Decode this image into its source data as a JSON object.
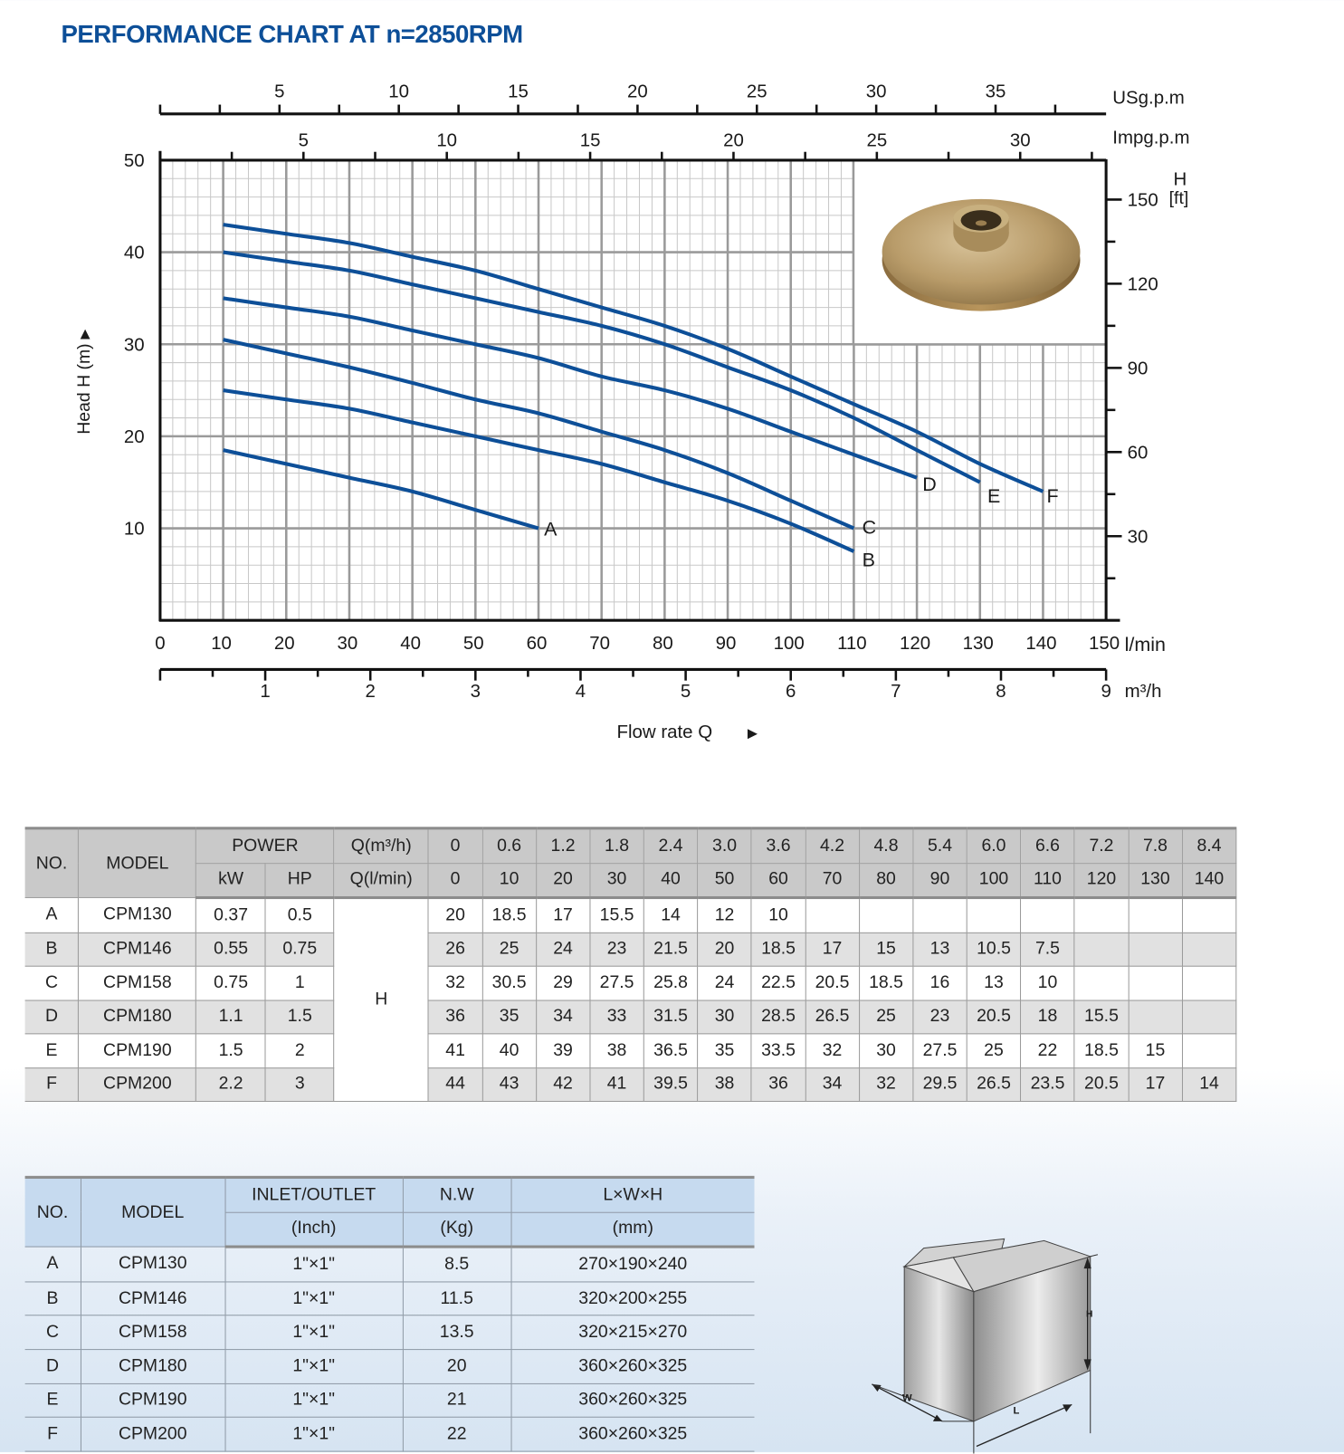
{
  "chart_data": {
    "type": "line",
    "title": "PERFORMANCE CHART AT n=2850RPM",
    "xlabel": "Flow rate Q",
    "ylabel": "Head H (m)",
    "x_unit": "l/min",
    "xlim": [
      0,
      150
    ],
    "ylim": [
      0,
      50
    ],
    "grid": true,
    "x_ticks": [
      0,
      10,
      20,
      30,
      40,
      50,
      60,
      70,
      80,
      90,
      100,
      110,
      120,
      130,
      140,
      150
    ],
    "y_ticks": [
      10,
      20,
      30,
      40,
      50
    ],
    "secondary_axes": {
      "top_usgpm": {
        "unit": "USg.p.m",
        "ticks": [
          5,
          10,
          15,
          20,
          25,
          30,
          35
        ]
      },
      "top_impgpm": {
        "unit": "Impg.p.m",
        "ticks": [
          5,
          10,
          15,
          20,
          25,
          30
        ]
      },
      "bottom_m3h": {
        "unit": "m³/h",
        "ticks": [
          1,
          2,
          3,
          4,
          5,
          6,
          7,
          8,
          9
        ]
      },
      "right_ft": {
        "unit_top": "H",
        "unit": "[ft]",
        "ticks": [
          30,
          60,
          90,
          120,
          150
        ]
      }
    },
    "series": [
      {
        "name": "A",
        "x": [
          10,
          20,
          30,
          40,
          50,
          60
        ],
        "y": [
          18.5,
          17,
          15.5,
          14,
          12,
          10
        ]
      },
      {
        "name": "B",
        "x": [
          10,
          20,
          30,
          40,
          50,
          60,
          70,
          80,
          90,
          100,
          110
        ],
        "y": [
          25,
          24,
          23,
          21.5,
          20,
          18.5,
          17,
          15,
          13,
          10.5,
          7.5
        ]
      },
      {
        "name": "C",
        "x": [
          10,
          20,
          30,
          40,
          50,
          60,
          70,
          80,
          90,
          100,
          110
        ],
        "y": [
          30.5,
          29,
          27.5,
          25.8,
          24,
          22.5,
          20.5,
          18.5,
          16,
          13,
          10
        ]
      },
      {
        "name": "D",
        "x": [
          10,
          20,
          30,
          40,
          50,
          60,
          70,
          80,
          90,
          100,
          110,
          120
        ],
        "y": [
          35,
          34,
          33,
          31.5,
          30,
          28.5,
          26.5,
          25,
          23,
          20.5,
          18,
          15.5
        ]
      },
      {
        "name": "E",
        "x": [
          10,
          20,
          30,
          40,
          50,
          60,
          70,
          80,
          90,
          100,
          110,
          120,
          130
        ],
        "y": [
          40,
          39,
          38,
          36.5,
          35,
          33.5,
          32,
          30,
          27.5,
          25,
          22,
          18.5,
          15
        ]
      },
      {
        "name": "F",
        "x": [
          10,
          20,
          30,
          40,
          50,
          60,
          70,
          80,
          90,
          100,
          110,
          120,
          130,
          140
        ],
        "y": [
          43,
          42,
          41,
          39.5,
          38,
          36,
          34,
          32,
          29.5,
          26.5,
          23.5,
          20.5,
          17,
          14
        ]
      }
    ],
    "colors": {
      "curve": "#0d4f98",
      "title": "#0d4f98",
      "grid_minor": "#c8c8c8",
      "grid_major": "#9a9a9a"
    },
    "arrow_glyphs": {
      "up": "▲",
      "right": "►"
    }
  },
  "tables": {
    "performance": {
      "headers": {
        "no": "NO.",
        "model": "MODEL",
        "power": "POWER",
        "kw": "kW",
        "hp": "HP",
        "q_m3h": "Q(m³/h)",
        "q_lmin": "Q(l/min)",
        "h": "H"
      },
      "q_m3h": [
        "0",
        "0.6",
        "1.2",
        "1.8",
        "2.4",
        "3.0",
        "3.6",
        "4.2",
        "4.8",
        "5.4",
        "6.0",
        "6.6",
        "7.2",
        "7.8",
        "8.4"
      ],
      "q_lmin": [
        "0",
        "10",
        "20",
        "30",
        "40",
        "50",
        "60",
        "70",
        "80",
        "90",
        "100",
        "110",
        "120",
        "130",
        "140"
      ],
      "rows": [
        {
          "no": "A",
          "model": "CPM130",
          "kw": "0.37",
          "hp": "0.5",
          "h": [
            "20",
            "18.5",
            "17",
            "15.5",
            "14",
            "12",
            "10",
            "",
            "",
            "",
            "",
            "",
            "",
            "",
            ""
          ]
        },
        {
          "no": "B",
          "model": "CPM146",
          "kw": "0.55",
          "hp": "0.75",
          "h": [
            "26",
            "25",
            "24",
            "23",
            "21.5",
            "20",
            "18.5",
            "17",
            "15",
            "13",
            "10.5",
            "7.5",
            "",
            "",
            ""
          ]
        },
        {
          "no": "C",
          "model": "CPM158",
          "kw": "0.75",
          "hp": "1",
          "h": [
            "32",
            "30.5",
            "29",
            "27.5",
            "25.8",
            "24",
            "22.5",
            "20.5",
            "18.5",
            "16",
            "13",
            "10",
            "",
            "",
            ""
          ]
        },
        {
          "no": "D",
          "model": "CPM180",
          "kw": "1.1",
          "hp": "1.5",
          "h": [
            "36",
            "35",
            "34",
            "33",
            "31.5",
            "30",
            "28.5",
            "26.5",
            "25",
            "23",
            "20.5",
            "18",
            "15.5",
            "",
            ""
          ]
        },
        {
          "no": "E",
          "model": "CPM190",
          "kw": "1.5",
          "hp": "2",
          "h": [
            "41",
            "40",
            "39",
            "38",
            "36.5",
            "35",
            "33.5",
            "32",
            "30",
            "27.5",
            "25",
            "22",
            "18.5",
            "15",
            ""
          ]
        },
        {
          "no": "F",
          "model": "CPM200",
          "kw": "2.2",
          "hp": "3",
          "h": [
            "44",
            "43",
            "42",
            "41",
            "39.5",
            "38",
            "36",
            "34",
            "32",
            "29.5",
            "26.5",
            "23.5",
            "20.5",
            "17",
            "14"
          ]
        }
      ]
    },
    "dimensions": {
      "headers": {
        "no": "NO.",
        "model": "MODEL",
        "inlet": "INLET/OUTLET",
        "inlet_unit": "(Inch)",
        "nw": "N.W",
        "nw_unit": "(Kg)",
        "lwh": "L×W×H",
        "lwh_unit": "(mm)"
      },
      "rows": [
        {
          "no": "A",
          "model": "CPM130",
          "inlet": "1\"×1\"",
          "nw": "8.5",
          "lwh": "270×190×240"
        },
        {
          "no": "B",
          "model": "CPM146",
          "inlet": "1\"×1\"",
          "nw": "11.5",
          "lwh": "320×200×255"
        },
        {
          "no": "C",
          "model": "CPM158",
          "inlet": "1\"×1\"",
          "nw": "13.5",
          "lwh": "320×215×270"
        },
        {
          "no": "D",
          "model": "CPM180",
          "inlet": "1\"×1\"",
          "nw": "20",
          "lwh": "360×260×325"
        },
        {
          "no": "E",
          "model": "CPM190",
          "inlet": "1\"×1\"",
          "nw": "21",
          "lwh": "360×260×325"
        },
        {
          "no": "F",
          "model": "CPM200",
          "inlet": "1\"×1\"",
          "nw": "22",
          "lwh": "360×260×325"
        }
      ]
    }
  },
  "box_diagram": {
    "labels": {
      "h": "H",
      "w": "W",
      "l": "L"
    }
  }
}
